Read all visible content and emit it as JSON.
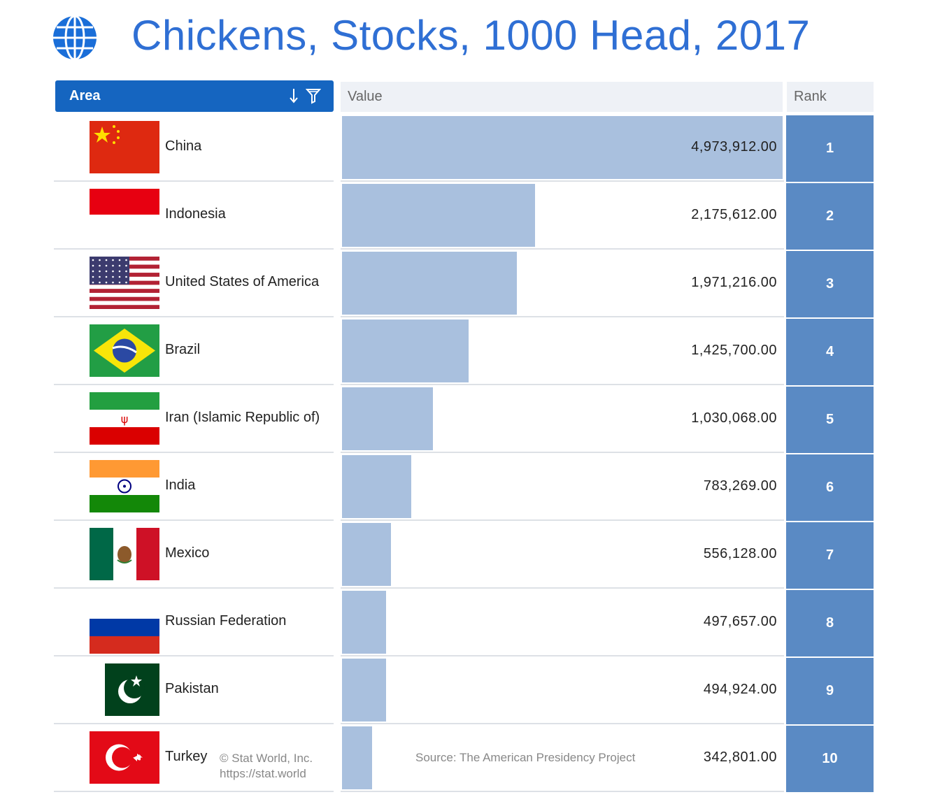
{
  "title": "Chickens, Stocks, 1000 Head, 2017",
  "headers": {
    "area": "Area",
    "value": "Value",
    "rank": "Rank"
  },
  "footer": {
    "credit_line1": "© Stat World, Inc.",
    "credit_line2": "https://stat.world",
    "source": "Source: The American Presidency Project"
  },
  "colors": {
    "title": "#2f6fd4",
    "header_active": "#1565c0",
    "bar": "#a9c0de",
    "rank": "#5a8ac4"
  },
  "chart_data": {
    "type": "bar",
    "orientation": "horizontal",
    "categories": [
      "China",
      "Indonesia",
      "United States of America",
      "Brazil",
      "Iran (Islamic Republic of)",
      "India",
      "Mexico",
      "Russian Federation",
      "Pakistan",
      "Turkey"
    ],
    "values": [
      4973912.0,
      2175612.0,
      1971216.0,
      1425700.0,
      1030068.0,
      783269.0,
      556128.0,
      497657.0,
      494924.0,
      342801.0
    ],
    "value_labels": [
      "4,973,912.00",
      "2,175,612.00",
      "1,971,216.00",
      "1,425,700.00",
      "1,030,068.00",
      "783,269.00",
      "556,128.00",
      "497,657.00",
      "494,924.00",
      "342,801.00"
    ],
    "ranks": [
      "1",
      "2",
      "3",
      "4",
      "5",
      "6",
      "7",
      "8",
      "9",
      "10"
    ],
    "flags": [
      "china-flag",
      "indonesia-flag",
      "usa-flag",
      "brazil-flag",
      "iran-flag",
      "india-flag",
      "mexico-flag",
      "russia-flag",
      "pakistan-flag",
      "turkey-flag"
    ],
    "xlim": [
      0,
      4973912
    ],
    "grid": false,
    "legend": "none"
  }
}
